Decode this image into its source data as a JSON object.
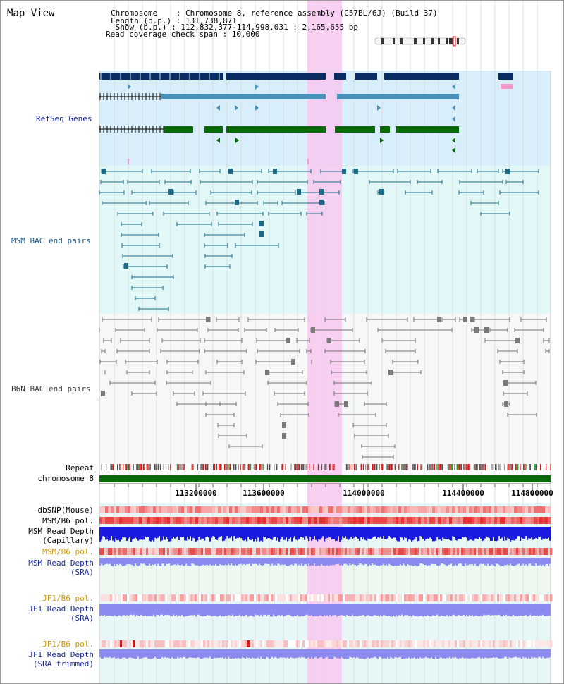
{
  "title": "Map View",
  "header": {
    "chromosome": "Chromosome    : Chromosome 8, reference assembly (C57BL/6J) (Build 37)",
    "length": "Length (b.p.) : 131,738,871",
    "show": " Show (b.p.) : 112,832,377-114,998,031 : 2,165,655 bp",
    "span": "Read coverage check span : 10,000"
  },
  "tracks": {
    "refseq": "RefSeq Genes",
    "msm_bac": "MSM BAC end pairs",
    "b6n_bac": "B6N BAC end pairs",
    "repeat": "Repeat",
    "chromosome": "chromosome 8",
    "dbsnp": "dbSNP(Mouse)",
    "msm_pol1": "MSM/B6 pol.",
    "msm_depth_cap_1": "MSM Read Depth",
    "msm_depth_cap_2": "(Capillary)",
    "msm_pol2": "MSM/B6 pol.",
    "msm_depth_sra_1": "MSM Read Depth",
    "msm_depth_sra_2": "(SRA)",
    "jf1_pol1": "JF1/B6 pol.",
    "jf1_depth_sra_1": "JF1 Read Depth",
    "jf1_depth_sra_2": "(SRA)",
    "jf1_pol2": "JF1/B6 pol.",
    "jf1_depth_trim_1": "JF1 Read Depth",
    "jf1_depth_trim_2": "(SRA trimmed)"
  },
  "axis_ticks": [
    "113200000",
    "113600000",
    "114000000",
    "114400000",
    "114800000"
  ],
  "colors": {
    "refseq_bg": "#d8eefa",
    "msm_bg": "#e2f8f8",
    "b6n_bg": "#f6f7f9",
    "lower_bg": "#e7f7f7",
    "msm_sra_bg": "#eef8ee",
    "highlight": "#f7c9f0",
    "navy": "#0a2d63",
    "steel": "#4a90b8",
    "green": "#0a6a0a",
    "teal_line": "#1a6a88",
    "gray_line": "#707070",
    "chrom_green": "#0c6a0c",
    "label_navy": "#1a2a9a",
    "label_orange": "#d09a10",
    "depth_blue": "#1a1ae0",
    "depth_light": "#8a8af0"
  }
}
